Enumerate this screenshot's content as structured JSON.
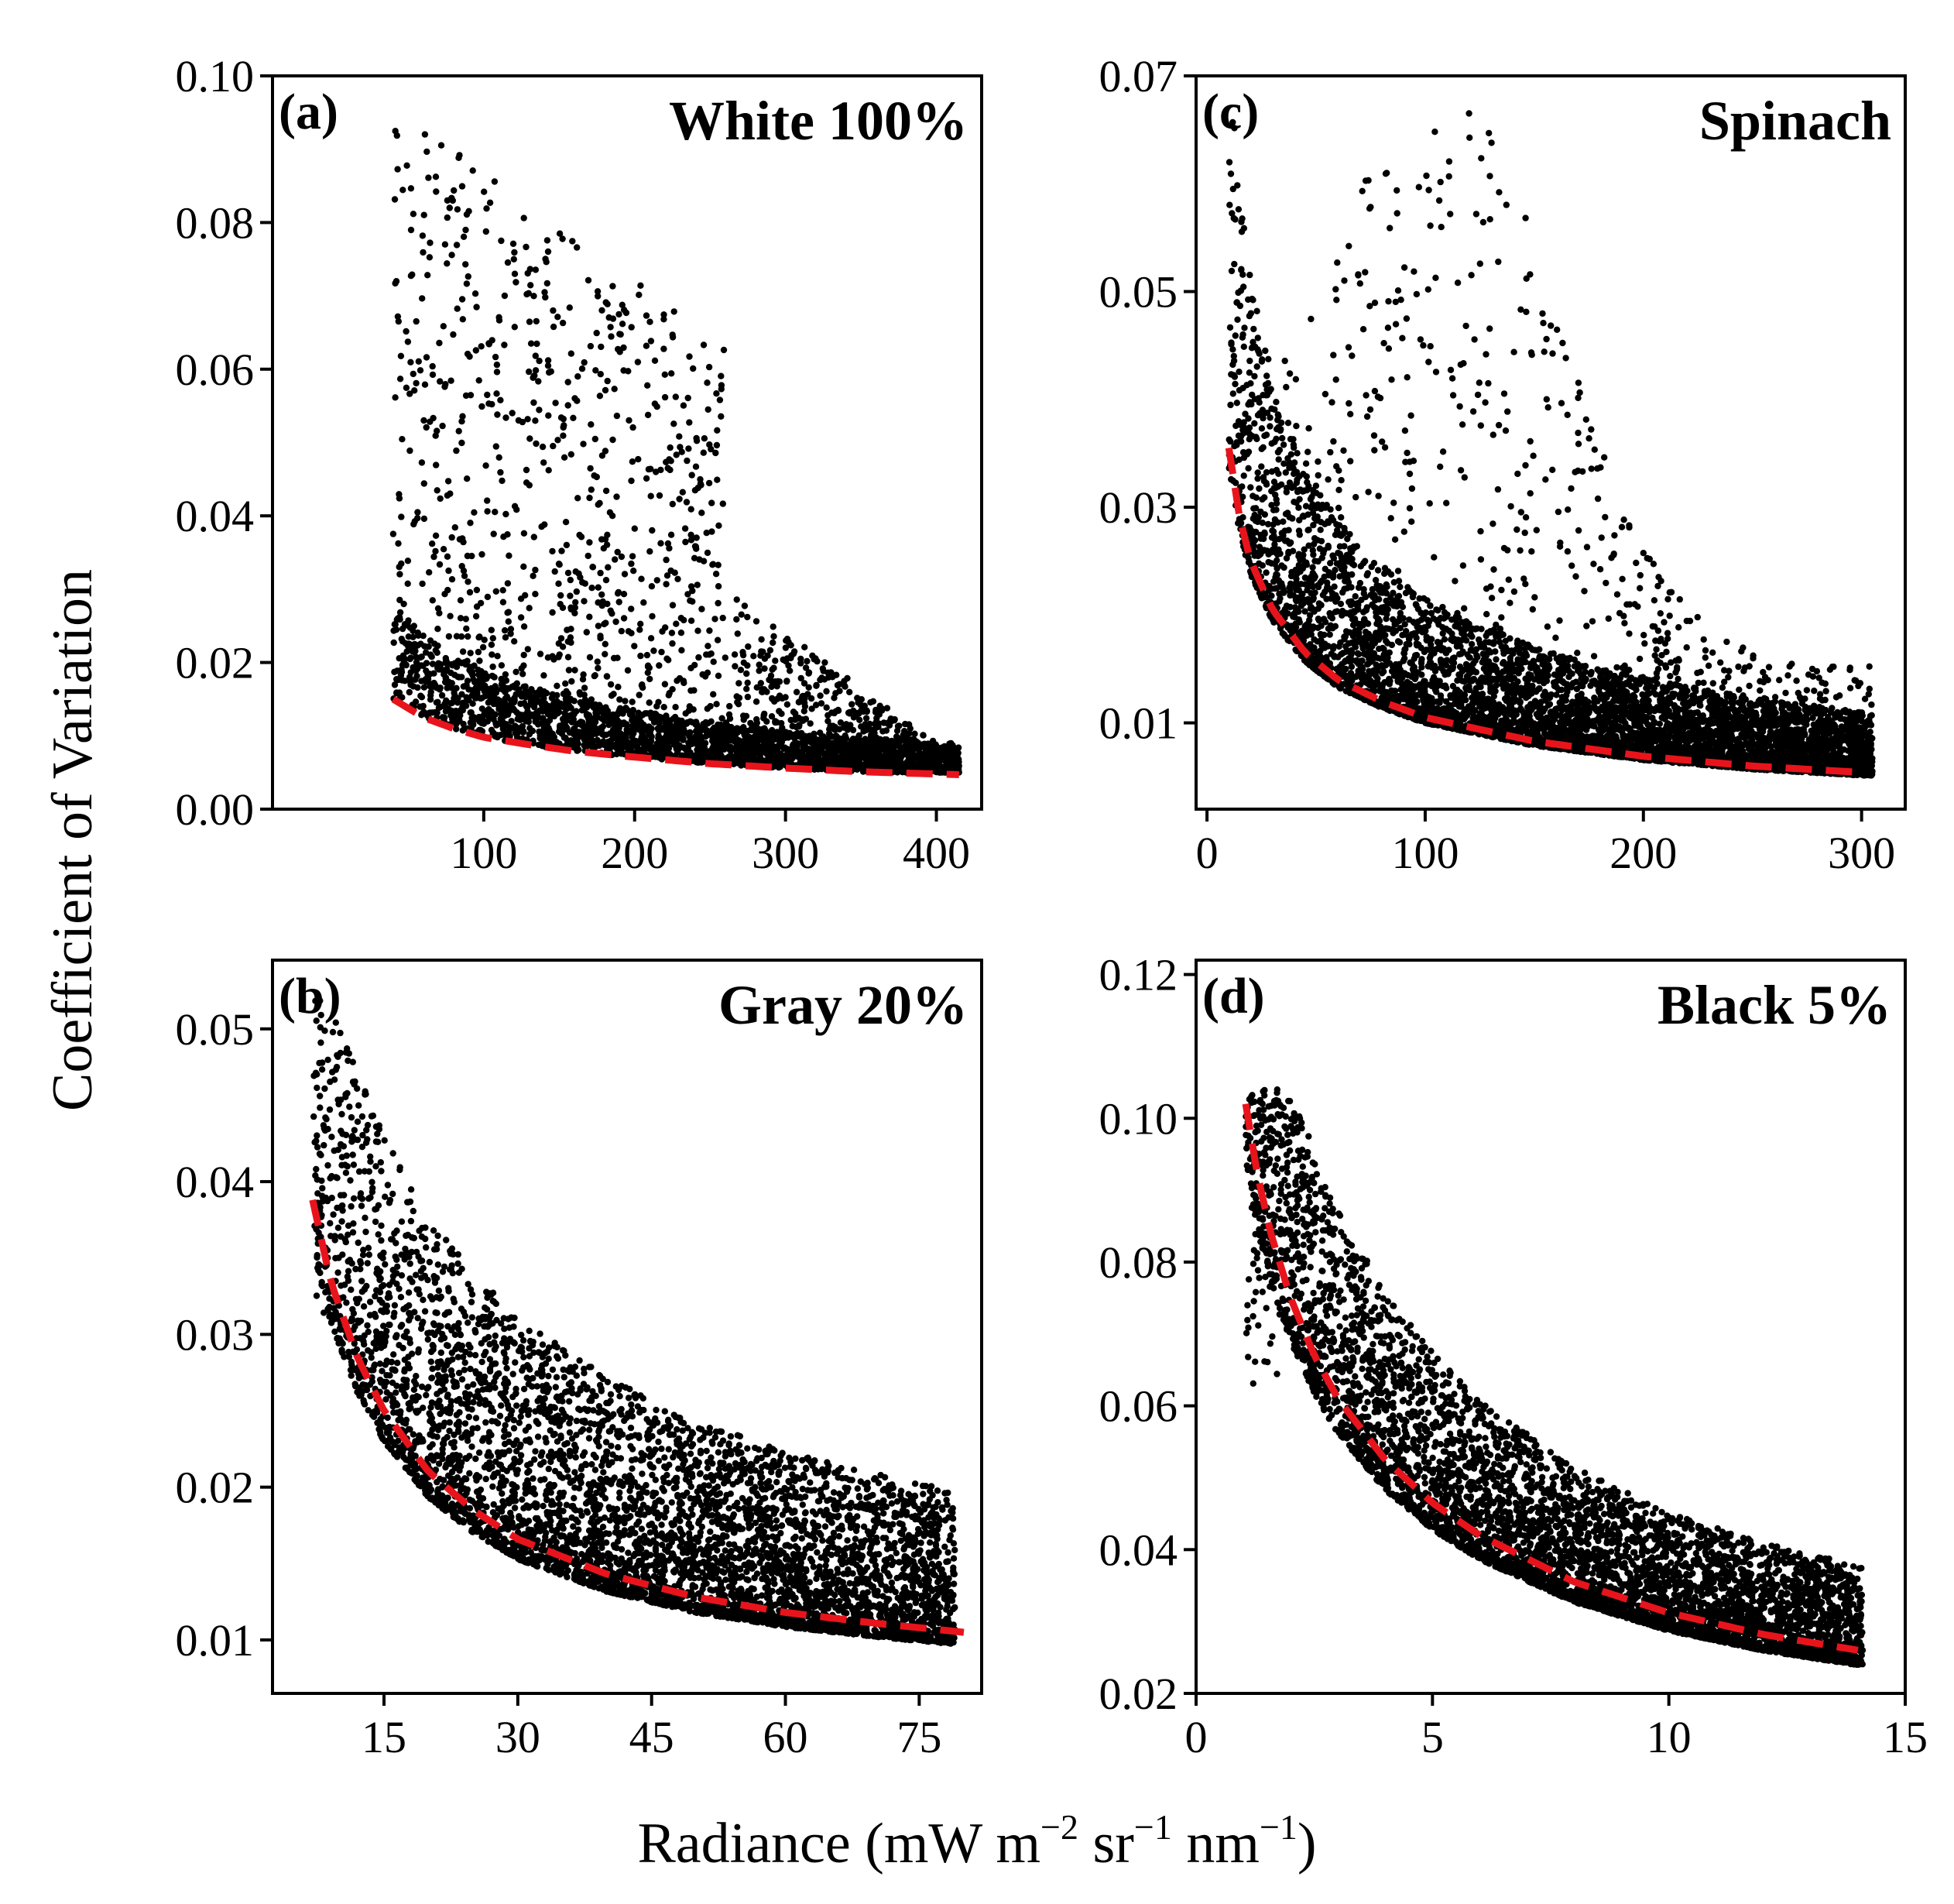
{
  "figure": {
    "ylabel": "Coefficient of Variation",
    "xlabel_main": "Radiance (mW m",
    "xlabel_exp1": "−2",
    "xlabel_mid": " sr",
    "xlabel_exp2": "−1",
    "xlabel_mid2": " nm",
    "xlabel_exp3": "−1",
    "xlabel_end": ")"
  },
  "colors": {
    "points": "#000000",
    "fit": "#e8141c",
    "frame": "#000000"
  },
  "chart_data": [
    {
      "id": "a",
      "type": "scatter",
      "letter": "(a)",
      "title": "White 100%",
      "xlim": [
        -40,
        430
      ],
      "ylim": [
        0,
        0.1
      ],
      "xticks": [
        100,
        200,
        300,
        400
      ],
      "yticks": [
        0.0,
        0.02,
        0.04,
        0.06,
        0.08,
        0.1
      ],
      "ytick_labels": [
        "0.00",
        "0.02",
        "0.04",
        "0.06",
        "0.08",
        "0.10"
      ],
      "xtick_labels": [
        "100",
        "200",
        "300",
        "400"
      ],
      "fit": {
        "x": [
          40,
          60,
          80,
          100,
          130,
          160,
          200,
          250,
          300,
          350,
          415
        ],
        "y": [
          0.015,
          0.0125,
          0.011,
          0.0098,
          0.0088,
          0.0079,
          0.0071,
          0.0062,
          0.0056,
          0.0051,
          0.0047
        ]
      },
      "scatter_summary": {
        "n_points": 3500,
        "x_range": [
          40,
          415
        ],
        "y_min": 0.005,
        "y_max": 0.098
      }
    },
    {
      "id": "c",
      "type": "scatter",
      "letter": "(c)",
      "title": "Spinach",
      "xlim": [
        -5,
        320
      ],
      "ylim": [
        0.002,
        0.07
      ],
      "xticks": [
        0,
        100,
        200,
        300
      ],
      "yticks": [
        0.01,
        0.03,
        0.05,
        0.07
      ],
      "ytick_labels": [
        "0.01",
        "0.03",
        "0.05",
        "0.07"
      ],
      "xtick_labels": [
        "0",
        "100",
        "200",
        "300"
      ],
      "fit": {
        "x": [
          10,
          15,
          20,
          30,
          45,
          60,
          80,
          100,
          150,
          200,
          250,
          300
        ],
        "y": [
          0.0355,
          0.029,
          0.025,
          0.0205,
          0.0165,
          0.014,
          0.012,
          0.0105,
          0.0083,
          0.0069,
          0.006,
          0.0054
        ]
      },
      "scatter_summary": {
        "n_points": 6000,
        "x_range": [
          10,
          305
        ],
        "y_min": 0.005,
        "y_max": 0.067
      }
    },
    {
      "id": "b",
      "type": "scatter",
      "letter": "(b)",
      "title": "Gray 20%",
      "xlim": [
        2.5,
        82
      ],
      "ylim": [
        0.0065,
        0.0545
      ],
      "xticks": [
        15,
        30,
        45,
        60,
        75
      ],
      "yticks": [
        0.01,
        0.02,
        0.03,
        0.04,
        0.05
      ],
      "ytick_labels": [
        "0.01",
        "0.02",
        "0.03",
        "0.04",
        "0.05"
      ],
      "xtick_labels": [
        "15",
        "30",
        "45",
        "60",
        "75"
      ],
      "fit": {
        "x": [
          7,
          9,
          12,
          15,
          20,
          25,
          30,
          40,
          50,
          60,
          70,
          80
        ],
        "y": [
          0.0388,
          0.0335,
          0.0285,
          0.025,
          0.021,
          0.0185,
          0.0166,
          0.0143,
          0.0128,
          0.0118,
          0.0111,
          0.0105
        ]
      },
      "scatter_summary": {
        "n_points": 5000,
        "x_range": [
          7,
          79
        ],
        "y_min": 0.009,
        "y_max": 0.052
      }
    },
    {
      "id": "d",
      "type": "scatter",
      "letter": "(d)",
      "title": "Black 5%",
      "xlim": [
        0,
        15
      ],
      "ylim": [
        0.02,
        0.122
      ],
      "xticks": [
        0,
        5,
        10,
        15
      ],
      "yticks": [
        0.02,
        0.04,
        0.06,
        0.08,
        0.1,
        0.12
      ],
      "ytick_labels": [
        "0.02",
        "0.04",
        "0.06",
        "0.08",
        "0.10",
        "0.12"
      ],
      "xtick_labels": [
        "0",
        "5",
        "10",
        "15"
      ],
      "fit": {
        "x": [
          1.05,
          1.3,
          1.6,
          2,
          2.5,
          3,
          4,
          5,
          6,
          8,
          10,
          12,
          14
        ],
        "y": [
          0.102,
          0.092,
          0.0835,
          0.075,
          0.067,
          0.061,
          0.0525,
          0.0465,
          0.042,
          0.0355,
          0.0312,
          0.0282,
          0.026
        ]
      },
      "scatter_summary": {
        "n_points": 5000,
        "x_range": [
          1.05,
          14.1
        ],
        "y_min": 0.024,
        "y_max": 0.104
      }
    }
  ]
}
